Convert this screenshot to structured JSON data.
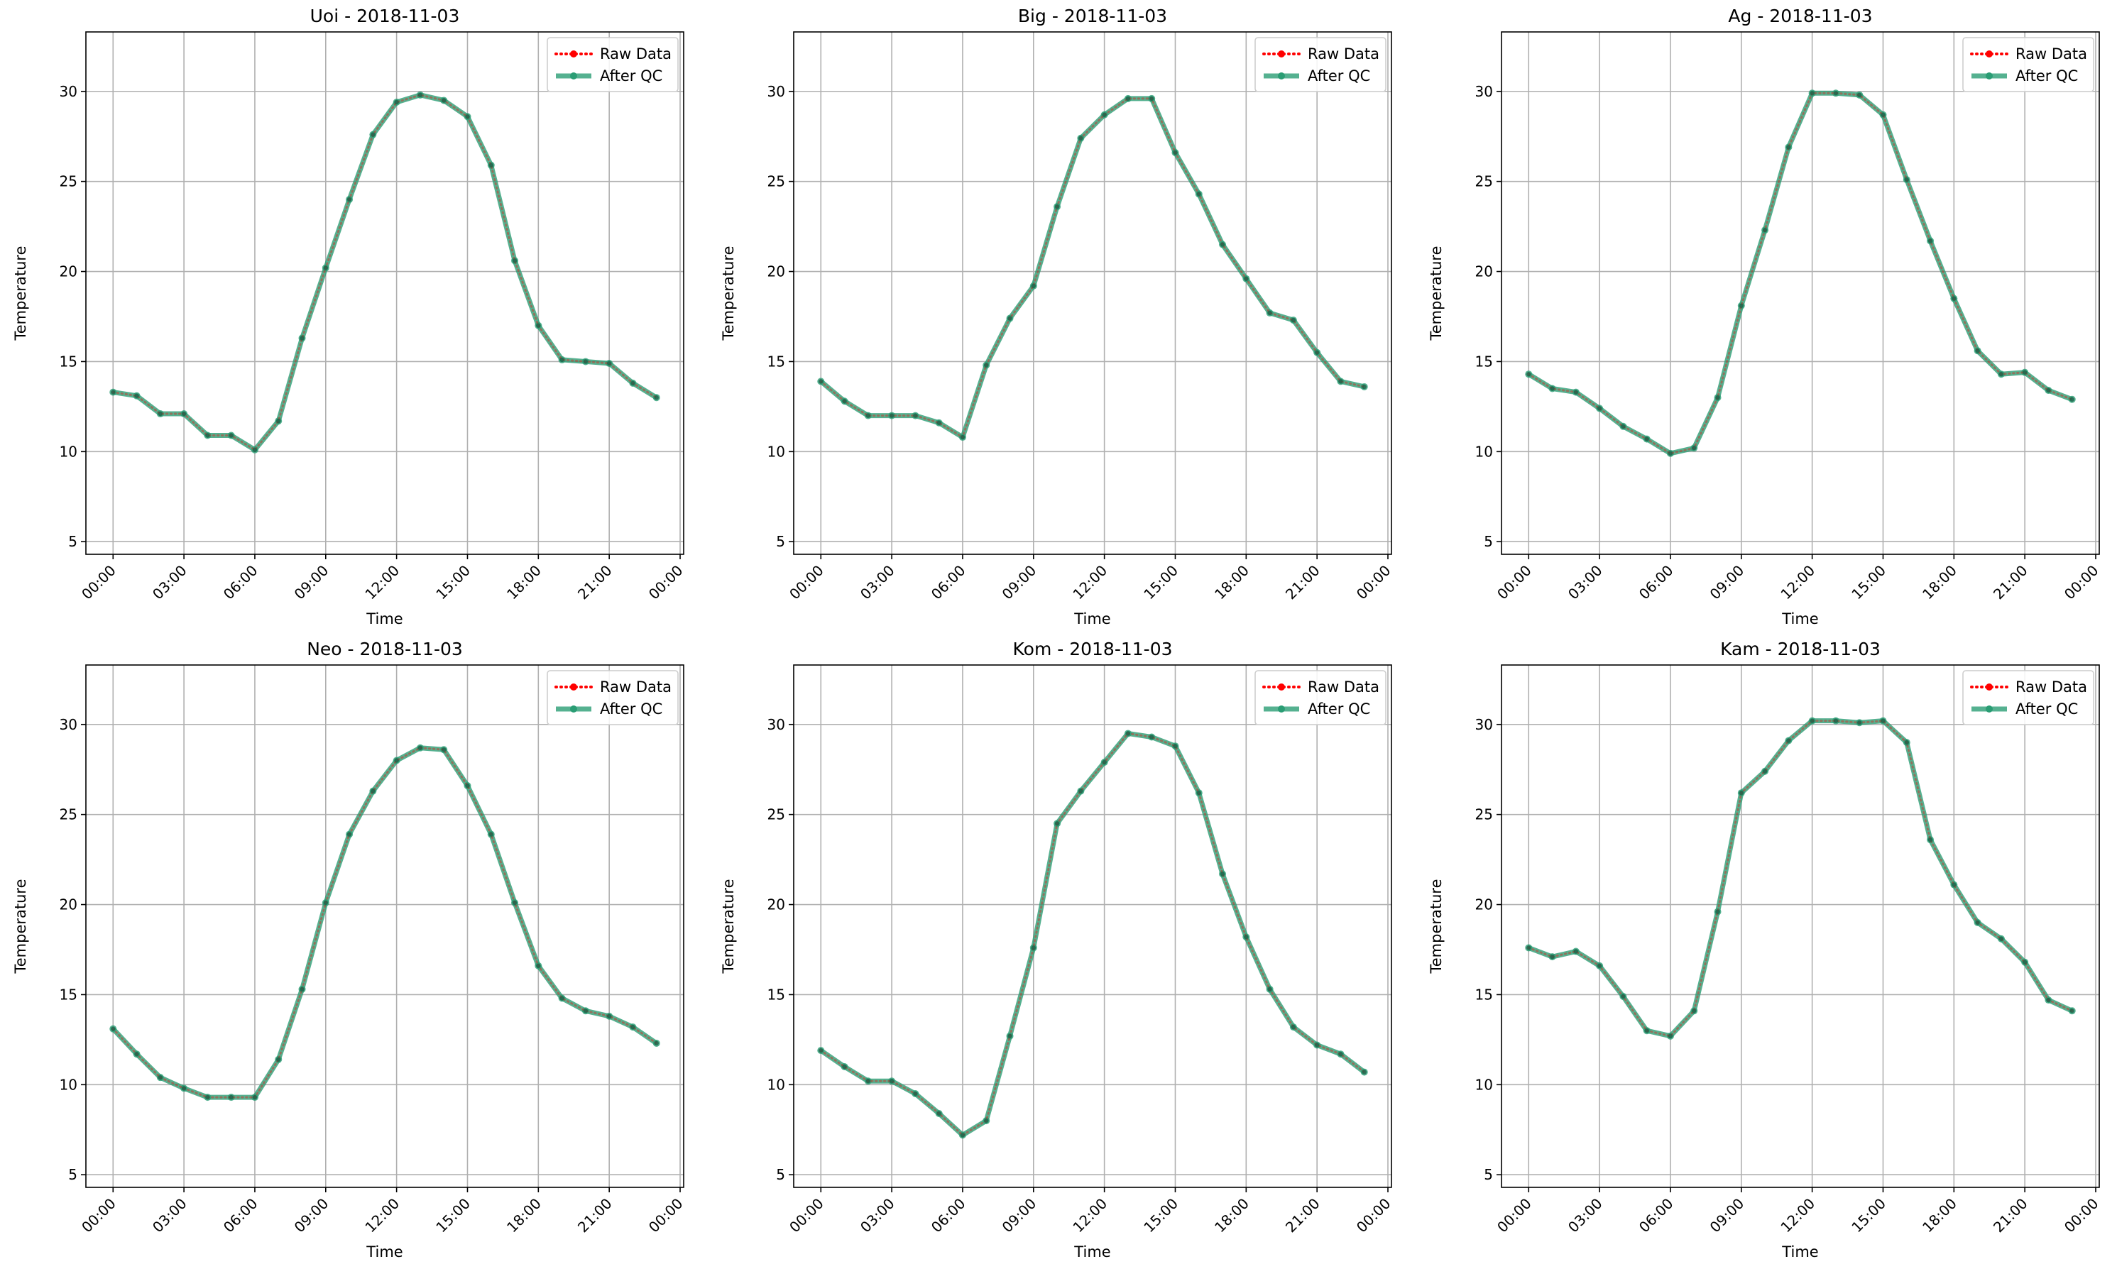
{
  "chart_data": [
    {
      "type": "line",
      "title": "Uoi - 2018-11-03",
      "xlabel": "Time",
      "ylabel": "Temperature",
      "xlim_hours": [
        -1.15,
        24.15
      ],
      "ylim": [
        4.3,
        33.3
      ],
      "xticks": [
        "00:00",
        "03:00",
        "06:00",
        "09:00",
        "12:00",
        "15:00",
        "18:00",
        "21:00",
        "00:00"
      ],
      "yticks": [
        5,
        10,
        15,
        20,
        25,
        30
      ],
      "grid": true,
      "legend": "top-right",
      "x": [
        "00:00",
        "01:00",
        "02:00",
        "03:00",
        "04:00",
        "05:00",
        "06:00",
        "07:00",
        "08:00",
        "09:00",
        "10:00",
        "11:00",
        "12:00",
        "13:00",
        "14:00",
        "15:00",
        "16:00",
        "17:00",
        "18:00",
        "19:00",
        "20:00",
        "21:00",
        "22:00",
        "23:00"
      ],
      "series": [
        {
          "name": "Raw Data",
          "color": "#ff0000",
          "values": [
            13.3,
            13.1,
            12.1,
            12.1,
            10.9,
            10.9,
            10.1,
            11.7,
            16.3,
            20.2,
            24.0,
            27.6,
            29.4,
            29.8,
            29.5,
            28.6,
            25.9,
            20.6,
            17.0,
            15.1,
            15.0,
            14.9,
            13.8,
            13.0
          ]
        },
        {
          "name": "After QC",
          "color": "#2a9d74",
          "values": [
            13.3,
            13.1,
            12.1,
            12.1,
            10.9,
            10.9,
            10.1,
            11.7,
            16.3,
            20.2,
            24.0,
            27.6,
            29.4,
            29.8,
            29.5,
            28.6,
            25.9,
            20.6,
            17.0,
            15.1,
            15.0,
            14.9,
            13.8,
            13.0
          ]
        }
      ]
    },
    {
      "type": "line",
      "title": "Big - 2018-11-03",
      "xlabel": "Time",
      "ylabel": "Temperature",
      "xlim_hours": [
        -1.15,
        24.15
      ],
      "ylim": [
        4.3,
        33.3
      ],
      "xticks": [
        "00:00",
        "03:00",
        "06:00",
        "09:00",
        "12:00",
        "15:00",
        "18:00",
        "21:00",
        "00:00"
      ],
      "yticks": [
        5,
        10,
        15,
        20,
        25,
        30
      ],
      "grid": true,
      "legend": "top-right",
      "x": [
        "00:00",
        "01:00",
        "02:00",
        "03:00",
        "04:00",
        "05:00",
        "06:00",
        "07:00",
        "08:00",
        "09:00",
        "10:00",
        "11:00",
        "12:00",
        "13:00",
        "14:00",
        "15:00",
        "16:00",
        "17:00",
        "18:00",
        "19:00",
        "20:00",
        "21:00",
        "22:00",
        "23:00"
      ],
      "series": [
        {
          "name": "Raw Data",
          "color": "#ff0000",
          "values": [
            13.9,
            12.8,
            12.0,
            12.0,
            12.0,
            11.6,
            10.8,
            14.8,
            17.4,
            19.2,
            23.6,
            27.4,
            28.7,
            29.6,
            29.6,
            26.6,
            24.3,
            21.5,
            19.6,
            17.7,
            17.3,
            15.5,
            13.9,
            13.6
          ]
        },
        {
          "name": "After QC",
          "color": "#2a9d74",
          "values": [
            13.9,
            12.8,
            12.0,
            12.0,
            12.0,
            11.6,
            10.8,
            14.8,
            17.4,
            19.2,
            23.6,
            27.4,
            28.7,
            29.6,
            29.6,
            26.6,
            24.3,
            21.5,
            19.6,
            17.7,
            17.3,
            15.5,
            13.9,
            13.6
          ]
        }
      ]
    },
    {
      "type": "line",
      "title": "Ag - 2018-11-03",
      "xlabel": "Time",
      "ylabel": "Temperature",
      "xlim_hours": [
        -1.15,
        24.15
      ],
      "ylim": [
        4.3,
        33.3
      ],
      "xticks": [
        "00:00",
        "03:00",
        "06:00",
        "09:00",
        "12:00",
        "15:00",
        "18:00",
        "21:00",
        "00:00"
      ],
      "yticks": [
        5,
        10,
        15,
        20,
        25,
        30
      ],
      "grid": true,
      "legend": "top-right",
      "x": [
        "00:00",
        "01:00",
        "02:00",
        "03:00",
        "04:00",
        "05:00",
        "06:00",
        "07:00",
        "08:00",
        "09:00",
        "10:00",
        "11:00",
        "12:00",
        "13:00",
        "14:00",
        "15:00",
        "16:00",
        "17:00",
        "18:00",
        "19:00",
        "20:00",
        "21:00",
        "22:00",
        "23:00"
      ],
      "series": [
        {
          "name": "Raw Data",
          "color": "#ff0000",
          "values": [
            14.3,
            13.5,
            13.3,
            12.4,
            11.4,
            10.7,
            9.9,
            10.2,
            13.0,
            18.1,
            22.3,
            26.9,
            29.9,
            29.9,
            29.8,
            28.7,
            25.1,
            21.7,
            18.5,
            15.6,
            14.3,
            14.4,
            13.4,
            12.9
          ]
        },
        {
          "name": "After QC",
          "color": "#2a9d74",
          "values": [
            14.3,
            13.5,
            13.3,
            12.4,
            11.4,
            10.7,
            9.9,
            10.2,
            13.0,
            18.1,
            22.3,
            26.9,
            29.9,
            29.9,
            29.8,
            28.7,
            25.1,
            21.7,
            18.5,
            15.6,
            14.3,
            14.4,
            13.4,
            12.9
          ]
        }
      ]
    },
    {
      "type": "line",
      "title": "Neo - 2018-11-03",
      "xlabel": "Time",
      "ylabel": "Temperature",
      "xlim_hours": [
        -1.15,
        24.15
      ],
      "ylim": [
        4.3,
        33.3
      ],
      "xticks": [
        "00:00",
        "03:00",
        "06:00",
        "09:00",
        "12:00",
        "15:00",
        "18:00",
        "21:00",
        "00:00"
      ],
      "yticks": [
        5,
        10,
        15,
        20,
        25,
        30
      ],
      "grid": true,
      "legend": "top-right",
      "x": [
        "00:00",
        "01:00",
        "02:00",
        "03:00",
        "04:00",
        "05:00",
        "06:00",
        "07:00",
        "08:00",
        "09:00",
        "10:00",
        "11:00",
        "12:00",
        "13:00",
        "14:00",
        "15:00",
        "16:00",
        "17:00",
        "18:00",
        "19:00",
        "20:00",
        "21:00",
        "22:00",
        "23:00"
      ],
      "series": [
        {
          "name": "Raw Data",
          "color": "#ff0000",
          "values": [
            13.1,
            11.7,
            10.4,
            9.8,
            9.3,
            9.3,
            9.3,
            11.4,
            15.3,
            20.1,
            23.9,
            26.3,
            28.0,
            28.7,
            28.6,
            26.6,
            23.9,
            20.1,
            16.6,
            14.8,
            14.1,
            13.8,
            13.2,
            12.3
          ]
        },
        {
          "name": "After QC",
          "color": "#2a9d74",
          "values": [
            13.1,
            11.7,
            10.4,
            9.8,
            9.3,
            9.3,
            9.3,
            11.4,
            15.3,
            20.1,
            23.9,
            26.3,
            28.0,
            28.7,
            28.6,
            26.6,
            23.9,
            20.1,
            16.6,
            14.8,
            14.1,
            13.8,
            13.2,
            12.3
          ]
        }
      ]
    },
    {
      "type": "line",
      "title": "Kom - 2018-11-03",
      "xlabel": "Time",
      "ylabel": "Temperature",
      "xlim_hours": [
        -1.15,
        24.15
      ],
      "ylim": [
        4.3,
        33.3
      ],
      "xticks": [
        "00:00",
        "03:00",
        "06:00",
        "09:00",
        "12:00",
        "15:00",
        "18:00",
        "21:00",
        "00:00"
      ],
      "yticks": [
        5,
        10,
        15,
        20,
        25,
        30
      ],
      "grid": true,
      "legend": "top-right",
      "x": [
        "00:00",
        "01:00",
        "02:00",
        "03:00",
        "04:00",
        "05:00",
        "06:00",
        "07:00",
        "08:00",
        "09:00",
        "10:00",
        "11:00",
        "12:00",
        "13:00",
        "14:00",
        "15:00",
        "16:00",
        "17:00",
        "18:00",
        "19:00",
        "20:00",
        "21:00",
        "22:00",
        "23:00"
      ],
      "series": [
        {
          "name": "Raw Data",
          "color": "#ff0000",
          "values": [
            11.9,
            11.0,
            10.2,
            10.2,
            9.5,
            8.4,
            7.2,
            8.0,
            12.7,
            17.6,
            24.5,
            26.3,
            27.9,
            29.5,
            29.3,
            28.8,
            26.2,
            21.7,
            18.2,
            15.3,
            13.2,
            12.2,
            11.7,
            10.7
          ]
        },
        {
          "name": "After QC",
          "color": "#2a9d74",
          "values": [
            11.9,
            11.0,
            10.2,
            10.2,
            9.5,
            8.4,
            7.2,
            8.0,
            12.7,
            17.6,
            24.5,
            26.3,
            27.9,
            29.5,
            29.3,
            28.8,
            26.2,
            21.7,
            18.2,
            15.3,
            13.2,
            12.2,
            11.7,
            10.7
          ]
        }
      ]
    },
    {
      "type": "line",
      "title": "Kam - 2018-11-03",
      "xlabel": "Time",
      "ylabel": "Temperature",
      "xlim_hours": [
        -1.15,
        24.15
      ],
      "ylim": [
        4.3,
        33.3
      ],
      "xticks": [
        "00:00",
        "03:00",
        "06:00",
        "09:00",
        "12:00",
        "15:00",
        "18:00",
        "21:00",
        "00:00"
      ],
      "yticks": [
        5,
        10,
        15,
        20,
        25,
        30
      ],
      "grid": true,
      "legend": "top-right",
      "x": [
        "00:00",
        "01:00",
        "02:00",
        "03:00",
        "04:00",
        "05:00",
        "06:00",
        "07:00",
        "08:00",
        "09:00",
        "10:00",
        "11:00",
        "12:00",
        "13:00",
        "14:00",
        "15:00",
        "16:00",
        "17:00",
        "18:00",
        "19:00",
        "20:00",
        "21:00",
        "22:00",
        "23:00"
      ],
      "series": [
        {
          "name": "Raw Data",
          "color": "#ff0000",
          "values": [
            17.6,
            17.1,
            17.4,
            16.6,
            14.9,
            13.0,
            12.7,
            14.1,
            19.6,
            26.2,
            27.4,
            29.1,
            30.2,
            30.2,
            30.1,
            30.2,
            29.0,
            23.6,
            21.1,
            19.0,
            18.1,
            16.8,
            14.7,
            14.1
          ]
        },
        {
          "name": "After QC",
          "color": "#2a9d74",
          "values": [
            17.6,
            17.1,
            17.4,
            16.6,
            14.9,
            13.0,
            12.7,
            14.1,
            19.6,
            26.2,
            27.4,
            29.1,
            30.2,
            30.2,
            30.1,
            30.2,
            29.0,
            23.6,
            21.1,
            19.0,
            18.1,
            16.8,
            14.7,
            14.1
          ]
        }
      ]
    }
  ]
}
